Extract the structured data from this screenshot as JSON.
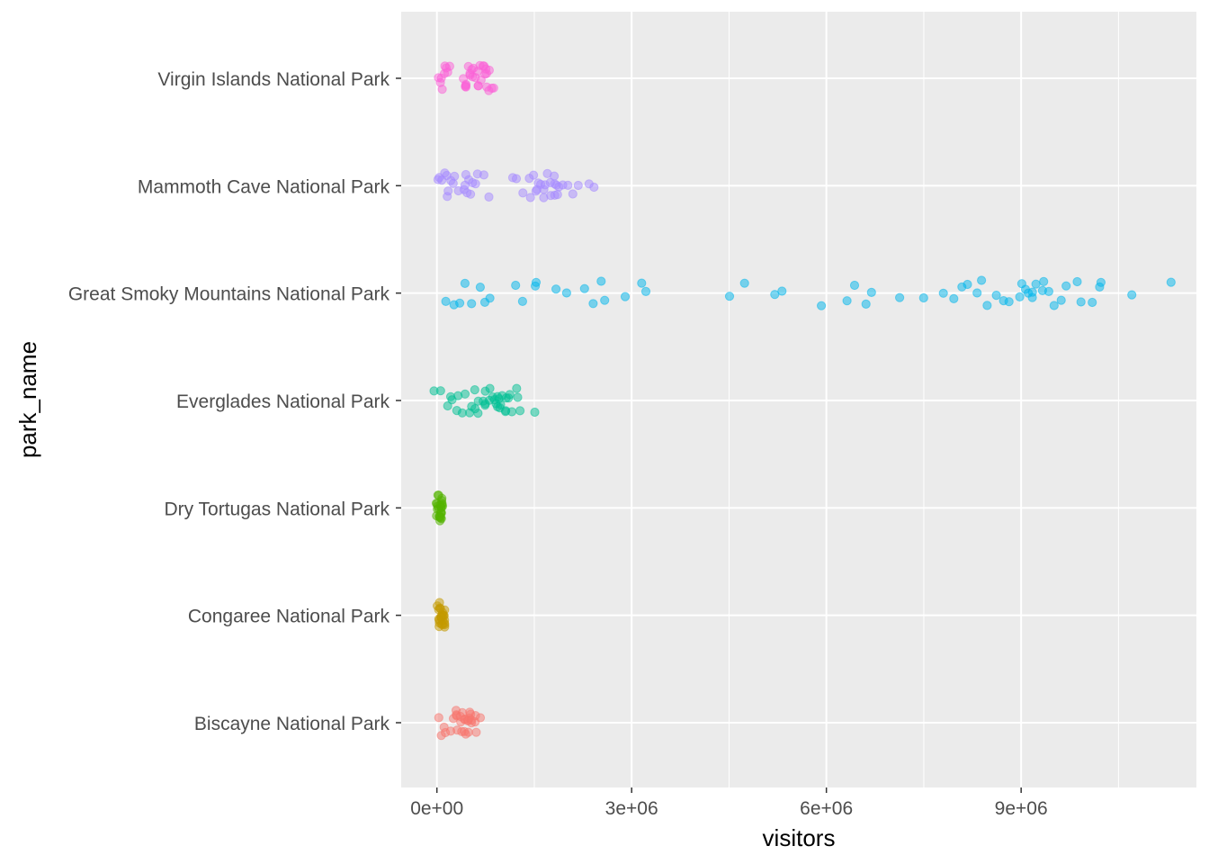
{
  "chart_data": {
    "type": "scatter",
    "xlabel": "visitors",
    "ylabel": "park_name",
    "xlim": [
      -550000,
      11700000
    ],
    "xticks": [
      {
        "value": 0,
        "label": "0e+00"
      },
      {
        "value": 3000000,
        "label": "3e+06"
      },
      {
        "value": 6000000,
        "label": "6e+06"
      },
      {
        "value": 9000000,
        "label": "9e+06"
      }
    ],
    "categories": [
      "Biscayne National Park",
      "Congaree National Park",
      "Dry Tortugas National Park",
      "Everglades National Park",
      "Great Smoky Mountains National Park",
      "Mammoth Cave National Park",
      "Virgin Islands National Park"
    ],
    "grid": true,
    "legend": "none",
    "series": [
      {
        "category": "Biscayne National Park",
        "color": "#F8766D",
        "values": [
          20000,
          60000,
          100000,
          150000,
          200000,
          240000,
          280000,
          300000,
          330000,
          360000,
          390000,
          410000,
          440000,
          460000,
          480000,
          500000,
          520000,
          540000,
          560000,
          580000,
          610000,
          650000,
          420000,
          380000,
          500000,
          470000,
          350000,
          540000,
          450000,
          300000
        ]
      },
      {
        "category": "Congaree National Park",
        "color": "#C49A00",
        "values": [
          20000,
          30000,
          40000,
          50000,
          60000,
          70000,
          80000,
          90000,
          100000,
          110000,
          120000,
          130000,
          40000,
          60000,
          80000,
          100000,
          50000,
          70000,
          90000,
          110000,
          30000,
          60000,
          80000,
          120000,
          100000
        ]
      },
      {
        "category": "Dry Tortugas National Park",
        "color": "#53B400",
        "values": [
          10000,
          15000,
          20000,
          25000,
          30000,
          35000,
          40000,
          45000,
          50000,
          55000,
          60000,
          65000,
          70000,
          75000,
          80000,
          90000,
          20000,
          30000,
          40000,
          50000,
          60000,
          70000,
          80000,
          25000,
          45000
        ]
      },
      {
        "category": "Everglades National Park",
        "color": "#00C094",
        "values": [
          -20000,
          80000,
          150000,
          200000,
          250000,
          300000,
          330000,
          400000,
          450000,
          500000,
          550000,
          600000,
          650000,
          700000,
          730000,
          760000,
          800000,
          830000,
          860000,
          900000,
          930000,
          960000,
          1000000,
          1030000,
          1060000,
          1100000,
          1130000,
          1160000,
          1200000,
          1250000,
          1300000,
          1520000,
          620000,
          870000,
          1050000,
          980000,
          740000,
          580000,
          910000,
          1010000
        ]
      },
      {
        "category": "Great Smoky Mountains National Park",
        "color": "#00B6EB",
        "values": [
          150000,
          250000,
          350000,
          450000,
          550000,
          650000,
          750000,
          800000,
          1200000,
          1300000,
          1500000,
          1550000,
          1850000,
          2000000,
          2300000,
          2400000,
          2550000,
          2600000,
          2900000,
          3150000,
          3200000,
          4500000,
          4750000,
          5200000,
          5300000,
          5950000,
          6300000,
          6450000,
          6600000,
          6700000,
          7100000,
          7500000,
          7800000,
          7950000,
          8100000,
          8200000,
          8300000,
          8400000,
          8500000,
          8600000,
          8700000,
          8800000,
          8950000,
          9000000,
          9050000,
          9100000,
          9150000,
          9200000,
          9250000,
          9300000,
          9350000,
          9400000,
          9500000,
          9600000,
          9700000,
          9850000,
          9950000,
          10100000,
          10200000,
          10250000,
          10700000,
          11300000
        ]
      },
      {
        "category": "Mammoth Cave National Park",
        "color": "#A58AFF",
        "values": [
          30000,
          60000,
          100000,
          130000,
          160000,
          200000,
          240000,
          300000,
          350000,
          400000,
          450000,
          480000,
          520000,
          560000,
          600000,
          650000,
          700000,
          800000,
          1150000,
          1250000,
          1300000,
          1450000,
          1500000,
          1550000,
          1600000,
          1650000,
          1700000,
          1750000,
          1800000,
          1850000,
          1900000,
          1950000,
          2000000,
          2100000,
          2150000,
          2350000,
          2400000,
          1620000,
          1780000,
          1520000,
          1680000,
          1880000,
          460000,
          540000,
          140000,
          200000,
          1400000,
          1720000,
          1830000,
          1580000
        ]
      },
      {
        "category": "Virgin Islands National Park",
        "color": "#FB61D7",
        "values": [
          10000,
          40000,
          70000,
          100000,
          130000,
          160000,
          200000,
          380000,
          420000,
          450000,
          480000,
          510000,
          540000,
          570000,
          600000,
          630000,
          660000,
          690000,
          720000,
          750000,
          780000,
          810000,
          840000,
          880000,
          470000,
          550000,
          650000,
          740000,
          800000,
          60000,
          120000,
          520000,
          610000,
          700000,
          430000,
          760000
        ]
      }
    ]
  }
}
